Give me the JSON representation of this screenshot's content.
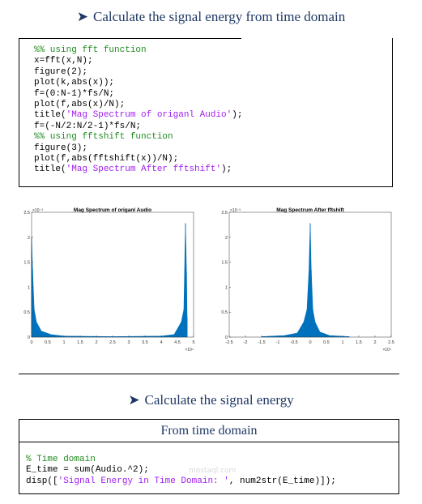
{
  "heading1": "Calculate the signal energy from time domain",
  "code1": [
    [
      {
        "t": "%% using fft function",
        "c": "cm"
      }
    ],
    [
      {
        "t": "x=fft(x,N);"
      }
    ],
    [
      {
        "t": "figure(2);"
      }
    ],
    [
      {
        "t": "plot(k,abs(x));"
      }
    ],
    [
      {
        "t": "f=(0:N-1)*fs/N;"
      }
    ],
    [
      {
        "t": "plot(f,abs(x)/N);"
      }
    ],
    [
      {
        "t": "title("
      },
      {
        "t": "'Mag Spectrum of origanl Audio'",
        "c": "st"
      },
      {
        "t": ");"
      }
    ],
    [
      {
        "t": "f=(-N/2:N/2-1)*fs/N;"
      }
    ],
    [
      {
        "t": "%% using fftshift function",
        "c": "cm"
      }
    ],
    [
      {
        "t": "figure(3);"
      }
    ],
    [
      {
        "t": "plot(f,abs(fftshift(x))/N);"
      }
    ],
    [
      {
        "t": "title("
      },
      {
        "t": "'Mag Spectrum After fftshift'",
        "c": "st"
      },
      {
        "t": ");"
      }
    ]
  ],
  "chart_data": [
    {
      "type": "area",
      "title": "Mag Spectrum of origanl Audio",
      "xlim": [
        0,
        5
      ],
      "ylim": [
        0,
        2.5
      ],
      "x_exponent": "×10⁴",
      "y_exponent": "×10⁻³",
      "xticks": [
        "0",
        "0.5",
        "1",
        "1.5",
        "2",
        "2.5",
        "3",
        "3.5",
        "4",
        "4.5",
        "5"
      ],
      "yticks": [
        "0",
        "0.5",
        "1",
        "1.5",
        "2",
        "2.5"
      ],
      "peaks": [
        {
          "x": 0.0,
          "y": 2.0
        },
        {
          "x": 0.03,
          "y": 1.35
        },
        {
          "x": 0.08,
          "y": 0.55
        },
        {
          "x": 0.15,
          "y": 0.3
        },
        {
          "x": 0.3,
          "y": 0.12
        },
        {
          "x": 0.6,
          "y": 0.05
        },
        {
          "x": 1.0,
          "y": 0.02
        },
        {
          "x": 2.5,
          "y": 0.01
        },
        {
          "x": 4.0,
          "y": 0.02
        },
        {
          "x": 4.4,
          "y": 0.05
        },
        {
          "x": 4.62,
          "y": 0.3
        },
        {
          "x": 4.7,
          "y": 0.55
        },
        {
          "x": 4.75,
          "y": 2.28
        },
        {
          "x": 4.78,
          "y": 1.3
        },
        {
          "x": 4.8,
          "y": 0.4
        }
      ],
      "color": "#0072bd"
    },
    {
      "type": "area",
      "title": "Mag Spectrum After fftshift",
      "xlim": [
        -2.5,
        2.5
      ],
      "ylim": [
        0,
        2.5
      ],
      "x_exponent": "×10⁴",
      "y_exponent": "×10⁻³",
      "xticks": [
        "-2.5",
        "-2",
        "-1.5",
        "-1",
        "-0.5",
        "0",
        "0.5",
        "1",
        "1.5",
        "2",
        "2.5"
      ],
      "yticks": [
        "0",
        "0.5",
        "1",
        "1.5",
        "2",
        "2.5"
      ],
      "peaks": [
        {
          "x": -1.5,
          "y": 0.01
        },
        {
          "x": -0.8,
          "y": 0.03
        },
        {
          "x": -0.4,
          "y": 0.08
        },
        {
          "x": -0.2,
          "y": 0.3
        },
        {
          "x": -0.1,
          "y": 0.55
        },
        {
          "x": -0.04,
          "y": 1.3
        },
        {
          "x": 0.0,
          "y": 2.28
        },
        {
          "x": 0.03,
          "y": 1.35
        },
        {
          "x": 0.08,
          "y": 0.55
        },
        {
          "x": 0.15,
          "y": 0.3
        },
        {
          "x": 0.3,
          "y": 0.1
        },
        {
          "x": 0.6,
          "y": 0.03
        },
        {
          "x": 1.2,
          "y": 0.01
        }
      ],
      "color": "#0072bd"
    }
  ],
  "heading2": "Calculate the signal energy",
  "table_header": "From time domain",
  "code2": [
    [
      {
        "t": "% Time domain",
        "c": "cm"
      }
    ],
    [
      {
        "t": "E_time = sum(Audio.^2);"
      }
    ],
    [
      {
        "t": "disp(["
      },
      {
        "t": "'Signal Energy in Time Domain: '",
        "c": "st"
      },
      {
        "t": ", num2str(E_time)]);"
      }
    ]
  ],
  "watermark": "mostaql.com"
}
